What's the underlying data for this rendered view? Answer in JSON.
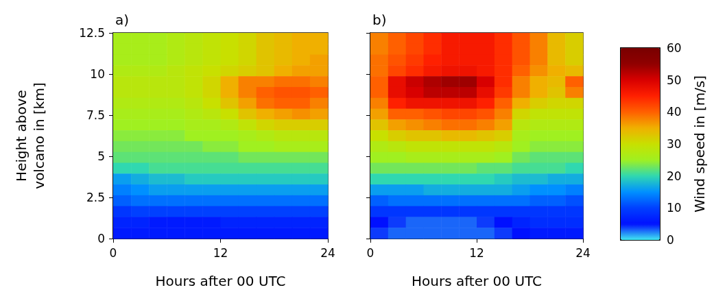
{
  "chart_data": [
    {
      "type": "heatmap",
      "title": "a)",
      "xlabel": "Hours after 00 UTC",
      "ylabel": "Height above volcano in [km]",
      "x": [
        1,
        3,
        5,
        7,
        9,
        11,
        13,
        15,
        17,
        19,
        21,
        23
      ],
      "xlim": [
        0,
        24
      ],
      "xticks": [
        0,
        12,
        24
      ],
      "ylim": [
        0,
        12.5
      ],
      "yticks": [
        0,
        2.5,
        5,
        7.5,
        10,
        12.5
      ],
      "clim": [
        0,
        60
      ],
      "cticks": [
        0,
        20,
        40,
        60
      ],
      "cells": [
        [
          26,
          26,
          26,
          27,
          28,
          29,
          30,
          31,
          33,
          34,
          35,
          35
        ],
        [
          26,
          26,
          26,
          27,
          28,
          29,
          30,
          31,
          33,
          34,
          35,
          35
        ],
        [
          26,
          26,
          26,
          27,
          28,
          29,
          30,
          31,
          33,
          34,
          35,
          36
        ],
        [
          27,
          27,
          27,
          28,
          29,
          30,
          31,
          32,
          33,
          35,
          36,
          36
        ],
        [
          28,
          28,
          28,
          28,
          29,
          31,
          35,
          38,
          38,
          39,
          39,
          38
        ],
        [
          28,
          28,
          28,
          28,
          29,
          31,
          35,
          38,
          40,
          41,
          41,
          40
        ],
        [
          27,
          27,
          27,
          27,
          28,
          30,
          33,
          36,
          39,
          40,
          40,
          38
        ],
        [
          26,
          26,
          26,
          26,
          27,
          28,
          30,
          33,
          35,
          36,
          37,
          36
        ],
        [
          25,
          25,
          25,
          25,
          26,
          26,
          27,
          29,
          31,
          32,
          32,
          32
        ],
        [
          24,
          24,
          24,
          24,
          25,
          25,
          25,
          26,
          27,
          28,
          28,
          28
        ],
        [
          23,
          23,
          23,
          23,
          23,
          24,
          24,
          25,
          25,
          26,
          26,
          26
        ],
        [
          22,
          22,
          22,
          22,
          22,
          22,
          22,
          23,
          23,
          23,
          23,
          23
        ],
        [
          20,
          20,
          21,
          21,
          21,
          21,
          21,
          21,
          21,
          21,
          21,
          21
        ],
        [
          16,
          17,
          18,
          18,
          19,
          19,
          19,
          19,
          19,
          19,
          19,
          19
        ],
        [
          14,
          15,
          16,
          16,
          16,
          16,
          16,
          16,
          16,
          16,
          16,
          16
        ],
        [
          12,
          13,
          13,
          13,
          13,
          13,
          13,
          13,
          13,
          13,
          13,
          13
        ],
        [
          9,
          10,
          10,
          10,
          10,
          10,
          10,
          10,
          10,
          10,
          10,
          10
        ],
        [
          7,
          7,
          6,
          6,
          6,
          6,
          7,
          7,
          7,
          7,
          7,
          7
        ],
        [
          6,
          6,
          6,
          6,
          6,
          6,
          6,
          6,
          6,
          6,
          6,
          6
        ]
      ]
    },
    {
      "type": "heatmap",
      "title": "b)",
      "xlabel": "Hours after 00 UTC",
      "clabel": "Wind speed in [m/s]",
      "x": [
        1,
        3,
        5,
        7,
        9,
        11,
        13,
        15,
        17,
        19,
        21,
        23
      ],
      "xlim": [
        0,
        24
      ],
      "xticks": [
        0,
        12,
        24
      ],
      "ylim": [
        0,
        12.5
      ],
      "yticks": [
        0,
        2.5,
        5,
        7.5,
        10,
        12.5
      ],
      "tick_labels": "x",
      "clim": [
        0,
        60
      ],
      "cticks": [
        10,
        30,
        50
      ],
      "cells": [
        [
          38,
          40,
          42,
          44,
          46,
          46,
          46,
          44,
          41,
          38,
          34,
          32
        ],
        [
          38,
          40,
          42,
          44,
          46,
          46,
          46,
          44,
          41,
          38,
          34,
          32
        ],
        [
          39,
          41,
          43,
          45,
          46,
          46,
          46,
          44,
          41,
          38,
          34,
          32
        ],
        [
          39,
          42,
          44,
          46,
          47,
          47,
          46,
          44,
          40,
          37,
          35,
          34
        ],
        [
          40,
          48,
          51,
          53,
          54,
          54,
          50,
          44,
          38,
          35,
          34,
          40
        ],
        [
          40,
          48,
          50,
          52,
          52,
          52,
          48,
          43,
          38,
          35,
          33,
          38
        ],
        [
          38,
          45,
          47,
          47,
          47,
          47,
          45,
          40,
          35,
          32,
          31,
          31
        ],
        [
          36,
          40,
          40,
          41,
          42,
          42,
          41,
          38,
          31,
          29,
          29,
          29
        ],
        [
          33,
          36,
          37,
          38,
          39,
          39,
          38,
          36,
          28,
          27,
          27,
          27
        ],
        [
          30,
          32,
          33,
          33,
          34,
          34,
          33,
          32,
          26,
          25,
          25,
          25
        ],
        [
          27,
          28,
          29,
          29,
          29,
          29,
          29,
          28,
          25,
          24,
          24,
          24
        ],
        [
          25,
          25,
          26,
          26,
          26,
          26,
          26,
          25,
          23,
          22,
          22,
          22
        ],
        [
          23,
          23,
          23,
          23,
          23,
          23,
          22,
          22,
          21,
          21,
          21,
          20
        ],
        [
          20,
          20,
          20,
          20,
          20,
          20,
          20,
          19,
          18,
          18,
          17,
          17
        ],
        [
          16,
          16,
          16,
          17,
          17,
          17,
          17,
          17,
          16,
          15,
          15,
          14
        ],
        [
          12,
          13,
          13,
          13,
          13,
          13,
          13,
          13,
          13,
          12,
          12,
          11
        ],
        [
          9,
          9,
          9,
          9,
          9,
          9,
          9,
          9,
          9,
          9,
          9,
          9
        ],
        [
          5,
          4,
          3,
          3,
          3,
          3,
          4,
          5,
          7,
          8,
          8,
          8
        ],
        [
          4,
          3,
          3,
          3,
          3,
          3,
          3,
          4,
          5,
          6,
          6,
          6
        ]
      ]
    }
  ]
}
